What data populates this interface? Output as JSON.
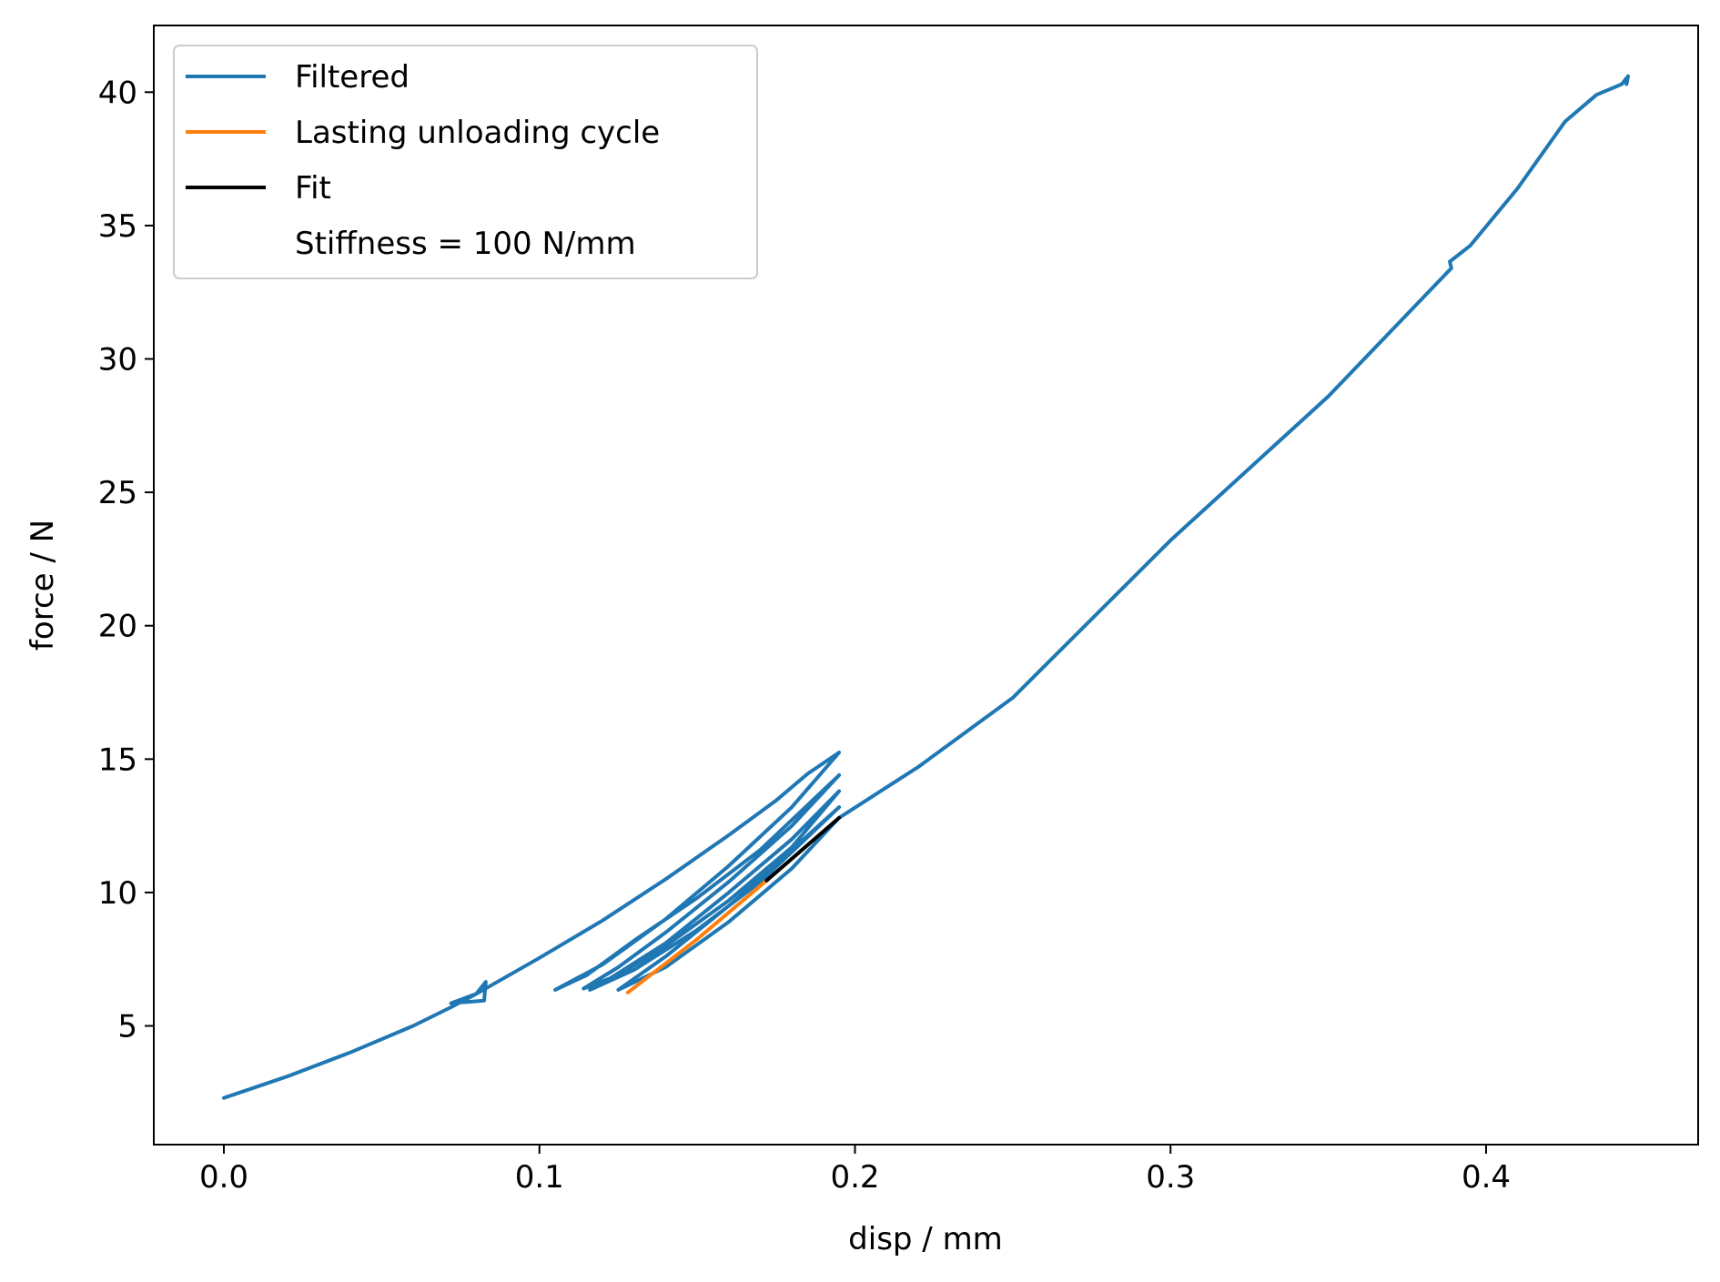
{
  "chart_data": {
    "type": "line",
    "xlabel": "disp / mm",
    "ylabel": "force / N",
    "xlim": [
      -0.0222,
      0.4672
    ],
    "ylim": [
      0.55,
      42.5
    ],
    "x_ticks": [
      0.0,
      0.1,
      0.2,
      0.3,
      0.4
    ],
    "x_tick_labels": [
      "0.0",
      "0.1",
      "0.2",
      "0.3",
      "0.4"
    ],
    "y_ticks": [
      5,
      10,
      15,
      20,
      25,
      30,
      35,
      40
    ],
    "y_tick_labels": [
      "5",
      "10",
      "15",
      "20",
      "25",
      "30",
      "35",
      "40"
    ],
    "grid": false,
    "legend": {
      "placement": "top-left",
      "entries": [
        "Filtered",
        "Lasting unloading cycle",
        "Fit",
        "Stiffness = 100 N/mm"
      ]
    },
    "series": [
      {
        "name": "Filtered",
        "color": "#1f77b4",
        "points": [
          [
            0.0,
            2.3
          ],
          [
            0.02,
            3.1
          ],
          [
            0.04,
            4.0
          ],
          [
            0.06,
            5.0
          ],
          [
            0.072,
            5.7
          ],
          [
            0.08,
            6.2
          ],
          [
            0.083,
            6.65
          ],
          [
            0.0825,
            5.95
          ],
          [
            0.072,
            5.85
          ],
          [
            0.08,
            6.2
          ],
          [
            0.1,
            7.55
          ],
          [
            0.12,
            8.95
          ],
          [
            0.14,
            10.5
          ],
          [
            0.16,
            12.15
          ],
          [
            0.175,
            13.45
          ],
          [
            0.185,
            14.45
          ],
          [
            0.195,
            15.25
          ],
          [
            0.18,
            13.2
          ],
          [
            0.16,
            11.0
          ],
          [
            0.14,
            9.0
          ],
          [
            0.12,
            7.3
          ],
          [
            0.105,
            6.35
          ],
          [
            0.115,
            6.9
          ],
          [
            0.13,
            8.2
          ],
          [
            0.15,
            9.8
          ],
          [
            0.17,
            11.6
          ],
          [
            0.195,
            14.4
          ],
          [
            0.18,
            12.5
          ],
          [
            0.16,
            10.4
          ],
          [
            0.14,
            8.5
          ],
          [
            0.125,
            7.2
          ],
          [
            0.114,
            6.4
          ],
          [
            0.125,
            6.9
          ],
          [
            0.14,
            8.0
          ],
          [
            0.16,
            9.7
          ],
          [
            0.18,
            11.7
          ],
          [
            0.195,
            13.8
          ],
          [
            0.18,
            12.0
          ],
          [
            0.16,
            10.0
          ],
          [
            0.14,
            8.1
          ],
          [
            0.12,
            6.6
          ],
          [
            0.116,
            6.35
          ],
          [
            0.13,
            7.1
          ],
          [
            0.15,
            8.6
          ],
          [
            0.17,
            10.4
          ],
          [
            0.195,
            13.2
          ],
          [
            0.18,
            11.6
          ],
          [
            0.16,
            9.5
          ],
          [
            0.14,
            7.6
          ],
          [
            0.125,
            6.35
          ],
          [
            0.14,
            7.2
          ],
          [
            0.16,
            8.9
          ],
          [
            0.18,
            10.9
          ],
          [
            0.195,
            12.8
          ],
          [
            0.22,
            14.7
          ],
          [
            0.25,
            17.3
          ],
          [
            0.3,
            23.2
          ],
          [
            0.35,
            28.6
          ],
          [
            0.389,
            33.4
          ],
          [
            0.3885,
            33.65
          ],
          [
            0.395,
            34.25
          ],
          [
            0.41,
            36.4
          ],
          [
            0.425,
            38.9
          ],
          [
            0.435,
            39.9
          ],
          [
            0.443,
            40.3
          ],
          [
            0.445,
            40.6
          ],
          [
            0.4445,
            40.3
          ]
        ]
      },
      {
        "name": "Lasting unloading cycle",
        "color": "#ff7f0e",
        "points": [
          [
            0.128,
            6.25
          ],
          [
            0.15,
            8.25
          ],
          [
            0.172,
            10.45
          ]
        ]
      },
      {
        "name": "Fit",
        "color": "#000000",
        "points": [
          [
            0.172,
            10.45
          ],
          [
            0.195,
            12.8
          ]
        ]
      }
    ]
  }
}
